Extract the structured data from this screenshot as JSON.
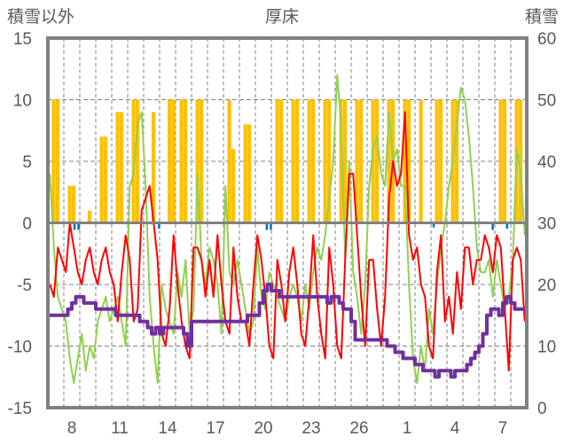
{
  "chart_data": {
    "type": "combo",
    "title": "厚床",
    "left_axis_label": "積雪以外",
    "right_axis_label": "積雪",
    "left_ylim": [
      -15,
      15
    ],
    "left_ticks": [
      "15",
      "10",
      "5",
      "0",
      "-5",
      "-10",
      "-15"
    ],
    "right_ylim": [
      0,
      60
    ],
    "right_ticks": [
      "60",
      "50",
      "40",
      "30",
      "20",
      "10",
      "0"
    ],
    "x_days": 30,
    "points_per_day": 4,
    "x_tick_labels": [
      {
        "day": 1,
        "label": "8"
      },
      {
        "day": 4,
        "label": "11"
      },
      {
        "day": 7,
        "label": "14"
      },
      {
        "day": 10,
        "label": "17"
      },
      {
        "day": 13,
        "label": "20"
      },
      {
        "day": 16,
        "label": "23"
      },
      {
        "day": 19,
        "label": "26"
      },
      {
        "day": 22,
        "label": "1"
      },
      {
        "day": 25,
        "label": "4"
      },
      {
        "day": 28,
        "label": "7"
      }
    ],
    "grid": true,
    "colors": {
      "bars": "#FFC000",
      "red": "#FF0000",
      "green": "#92D050",
      "snow": "#7030A0",
      "blue": "#0070C0",
      "frame": "#808080"
    },
    "bars": [
      [
        0.25,
        10
      ],
      [
        0.5,
        10
      ],
      [
        1.25,
        3
      ],
      [
        1.5,
        3
      ],
      [
        2.5,
        1
      ],
      [
        3.25,
        7
      ],
      [
        3.5,
        7
      ],
      [
        4.25,
        9
      ],
      [
        4.5,
        9
      ],
      [
        5.25,
        10
      ],
      [
        5.5,
        10
      ],
      [
        6.5,
        9
      ],
      [
        7.5,
        10
      ],
      [
        7.75,
        10
      ],
      [
        8.25,
        10
      ],
      [
        8.5,
        10
      ],
      [
        9.25,
        10
      ],
      [
        9.5,
        10
      ],
      [
        11.25,
        10
      ],
      [
        11.5,
        6
      ],
      [
        12.25,
        8
      ],
      [
        12.5,
        8
      ],
      [
        14.25,
        10
      ],
      [
        14.5,
        10
      ],
      [
        15.25,
        10
      ],
      [
        15.5,
        10
      ],
      [
        16.25,
        10
      ],
      [
        16.5,
        10
      ],
      [
        17.25,
        10
      ],
      [
        17.5,
        10
      ],
      [
        18.25,
        10
      ],
      [
        18.5,
        10
      ],
      [
        19.25,
        10
      ],
      [
        19.5,
        10
      ],
      [
        20.25,
        10
      ],
      [
        20.5,
        10
      ],
      [
        21.25,
        10
      ],
      [
        21.5,
        10
      ],
      [
        22.25,
        10
      ],
      [
        22.5,
        10
      ],
      [
        23.25,
        10
      ],
      [
        24.25,
        10
      ],
      [
        24.5,
        10
      ],
      [
        25.25,
        10
      ],
      [
        25.5,
        10
      ],
      [
        28.25,
        10
      ],
      [
        28.5,
        10
      ],
      [
        29.25,
        10
      ],
      [
        29.5,
        10
      ]
    ],
    "blue_marks": [
      [
        1.6,
        -0.5
      ],
      [
        1.85,
        -0.5
      ],
      [
        6.9,
        -0.4
      ],
      [
        13.65,
        -0.5
      ],
      [
        13.9,
        -0.5
      ],
      [
        24.1,
        -0.3
      ],
      [
        27.8,
        -0.5
      ],
      [
        28.7,
        -0.4
      ]
    ],
    "red_series": [
      -5,
      -6,
      -2,
      -3,
      -4,
      0,
      -2,
      -4,
      -5,
      -3,
      -2,
      -4,
      -5,
      -3,
      -2,
      -4,
      -5,
      -8,
      -4,
      -1,
      -3,
      -8,
      -7,
      1,
      2,
      3,
      0,
      -3,
      -9,
      -10,
      -7,
      -1,
      -5,
      -8,
      -10,
      -11,
      -2,
      -2,
      -3,
      -6,
      -3,
      -6,
      -1,
      -5,
      -8,
      -9,
      -2,
      -6,
      -8,
      -8,
      -10,
      -5,
      -1,
      -3,
      -6,
      -10,
      -11,
      -3,
      -5,
      -8,
      -4,
      -2,
      -5,
      -9,
      -10,
      -6,
      -1,
      -6,
      -9,
      -11,
      -2,
      -5,
      -10,
      -11,
      -3,
      4,
      4,
      -1,
      -6,
      -10,
      -3,
      -3,
      -7,
      -10,
      -6,
      2,
      5,
      3,
      4,
      9,
      -1,
      -3,
      -2,
      -5,
      -6,
      -10,
      -11,
      -4,
      -1,
      -8,
      -6,
      -9,
      -4,
      -7,
      -2,
      -2,
      -5,
      -3,
      -3,
      -1,
      -2,
      -4,
      -1,
      -2,
      -7,
      -12,
      -3,
      -2,
      -3,
      -8
    ],
    "green_series": [
      4,
      -2,
      -6,
      -7,
      -8,
      -11,
      -13,
      -11,
      -9,
      -12,
      -10,
      -11,
      -8,
      -7,
      -6,
      -8,
      -7,
      -6,
      -8,
      -10,
      3,
      4,
      8,
      9,
      3,
      -6,
      -10,
      -13,
      -5,
      -7,
      -8,
      -9,
      -4,
      -6,
      -3,
      -9,
      -7,
      4,
      -3,
      -5,
      -2,
      -3,
      -5,
      -9,
      3,
      -4,
      -5,
      -3,
      -5,
      -7,
      -9,
      -8,
      -2,
      -6,
      -7,
      -4,
      -5,
      -6,
      -7,
      -8,
      -6,
      -5,
      -6,
      -8,
      -5,
      -7,
      -4,
      -2,
      -3,
      -1,
      2,
      5,
      12,
      8,
      -3,
      5,
      -4,
      -6,
      -9,
      -5,
      3,
      6,
      7,
      4,
      3,
      9,
      5,
      6,
      3,
      3,
      -5,
      -11,
      -13,
      -10,
      -12,
      -7,
      -9,
      -5,
      -2,
      0,
      3,
      5,
      8,
      11,
      10,
      7,
      3,
      -2,
      -4,
      -4,
      -3,
      -6,
      -3,
      -5,
      -7,
      -6,
      -3,
      6,
      4,
      -1
    ],
    "snow_series": [
      15,
      15,
      15,
      15,
      15,
      16,
      17,
      18,
      18,
      17,
      17,
      17,
      16,
      16,
      16,
      16,
      16,
      15,
      15,
      15,
      15,
      15,
      15,
      14,
      14,
      13,
      12,
      13,
      12,
      13,
      13,
      13,
      13,
      13,
      12,
      10,
      14,
      14,
      14,
      14,
      14,
      14,
      14,
      14,
      14,
      14,
      14,
      14,
      14,
      14,
      15,
      15,
      15,
      17,
      19,
      20,
      19,
      19,
      18,
      18,
      18,
      18,
      18,
      18,
      18,
      18,
      18,
      18,
      18,
      18,
      17,
      18,
      18,
      17,
      16,
      16,
      14,
      11,
      11,
      11,
      11,
      11,
      11,
      11,
      11,
      10,
      10,
      9,
      9,
      8,
      8,
      8,
      7,
      7,
      6,
      6,
      6,
      5,
      6,
      6,
      6,
      5,
      6,
      6,
      6,
      7,
      8,
      9,
      10,
      12,
      15,
      16,
      16,
      15,
      17,
      18,
      17,
      16,
      16,
      16
    ]
  }
}
